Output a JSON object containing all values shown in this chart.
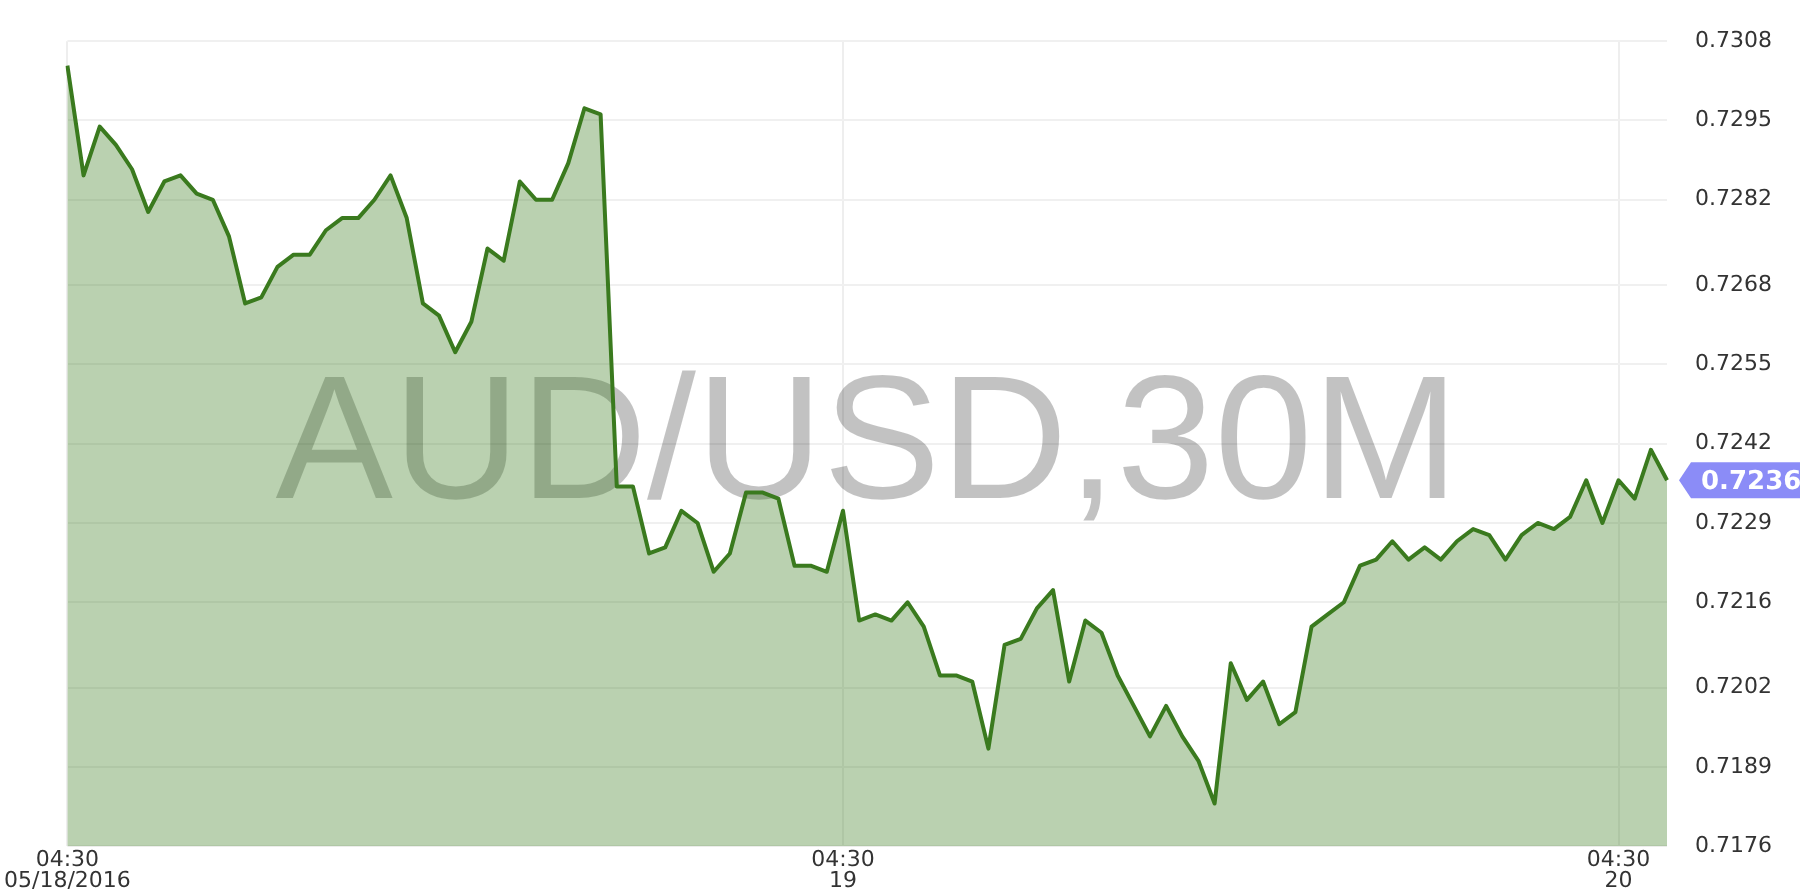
{
  "chart_data": {
    "type": "area",
    "title": "AUD/USD,30M",
    "categories": [
      "04:30\n05/18/2016",
      null,
      null,
      null,
      null,
      null,
      null,
      null,
      null,
      null,
      null,
      null,
      null,
      null,
      null,
      null,
      null,
      null,
      null,
      null,
      null,
      null,
      null,
      null,
      null,
      null,
      null,
      null,
      null,
      null,
      null,
      null,
      null,
      null,
      null,
      null,
      null,
      null,
      null,
      null,
      null,
      null,
      null,
      null,
      null,
      null,
      null,
      null,
      "04:30\n19",
      null,
      null,
      null,
      null,
      null,
      null,
      null,
      null,
      null,
      null,
      null,
      null,
      null,
      null,
      null,
      null,
      null,
      null,
      null,
      null,
      null,
      null,
      null,
      null,
      null,
      null,
      null,
      null,
      null,
      null,
      null,
      null,
      null,
      null,
      null,
      null,
      null,
      null,
      null,
      null,
      null,
      null,
      null,
      null,
      null,
      null,
      null,
      "04:30\n20",
      null,
      null,
      null
    ],
    "series": [
      {
        "color": "#3a7a1e",
        "values": [
          0.7304,
          0.7286,
          0.7294,
          0.7291,
          0.7287,
          0.728,
          0.7285,
          0.7286,
          0.7283,
          0.7282,
          0.7276,
          0.7265,
          0.7266,
          0.7271,
          0.7273,
          0.7273,
          0.7277,
          0.7279,
          0.7279,
          0.7282,
          0.7286,
          0.7279,
          0.7265,
          0.7263,
          0.7257,
          0.7262,
          0.7274,
          0.7272,
          0.7285,
          0.7282,
          0.7282,
          0.7288,
          0.7297,
          0.7296,
          0.7235,
          0.7235,
          0.7224,
          0.7225,
          0.7231,
          0.7229,
          0.7221,
          0.7224,
          0.7234,
          0.7234,
          0.7233,
          0.7222,
          0.7222,
          0.7221,
          0.7231,
          0.7213,
          0.7214,
          0.7213,
          0.7216,
          0.7212,
          0.7204,
          0.7204,
          0.7203,
          0.7192,
          0.7209,
          0.721,
          0.7215,
          0.7218,
          0.7203,
          0.7213,
          0.7211,
          0.7204,
          0.7199,
          0.7194,
          0.7199,
          0.7194,
          0.719,
          0.7183,
          0.7206,
          0.72,
          0.7203,
          0.7196,
          0.7198,
          0.7212,
          0.7214,
          0.7216,
          0.7222,
          0.7223,
          0.7226,
          0.7223,
          0.7225,
          0.7223,
          0.7226,
          0.7228,
          0.7227,
          0.7223,
          0.7227,
          0.7229,
          0.7228,
          0.723,
          0.7236,
          0.7229,
          0.7236,
          0.7233,
          0.7241,
          0.7236
        ]
      }
    ],
    "ylim": [
      0.7176,
      0.7308
    ],
    "yticks": [
      0.7176,
      0.7189,
      0.7202,
      0.7216,
      0.7229,
      0.7242,
      0.7255,
      0.7268,
      0.7282,
      0.7295,
      0.7308
    ],
    "annotations": [
      "0.7236"
    ],
    "grid": true,
    "legend": false,
    "marker": "none",
    "line_style": "solid"
  }
}
